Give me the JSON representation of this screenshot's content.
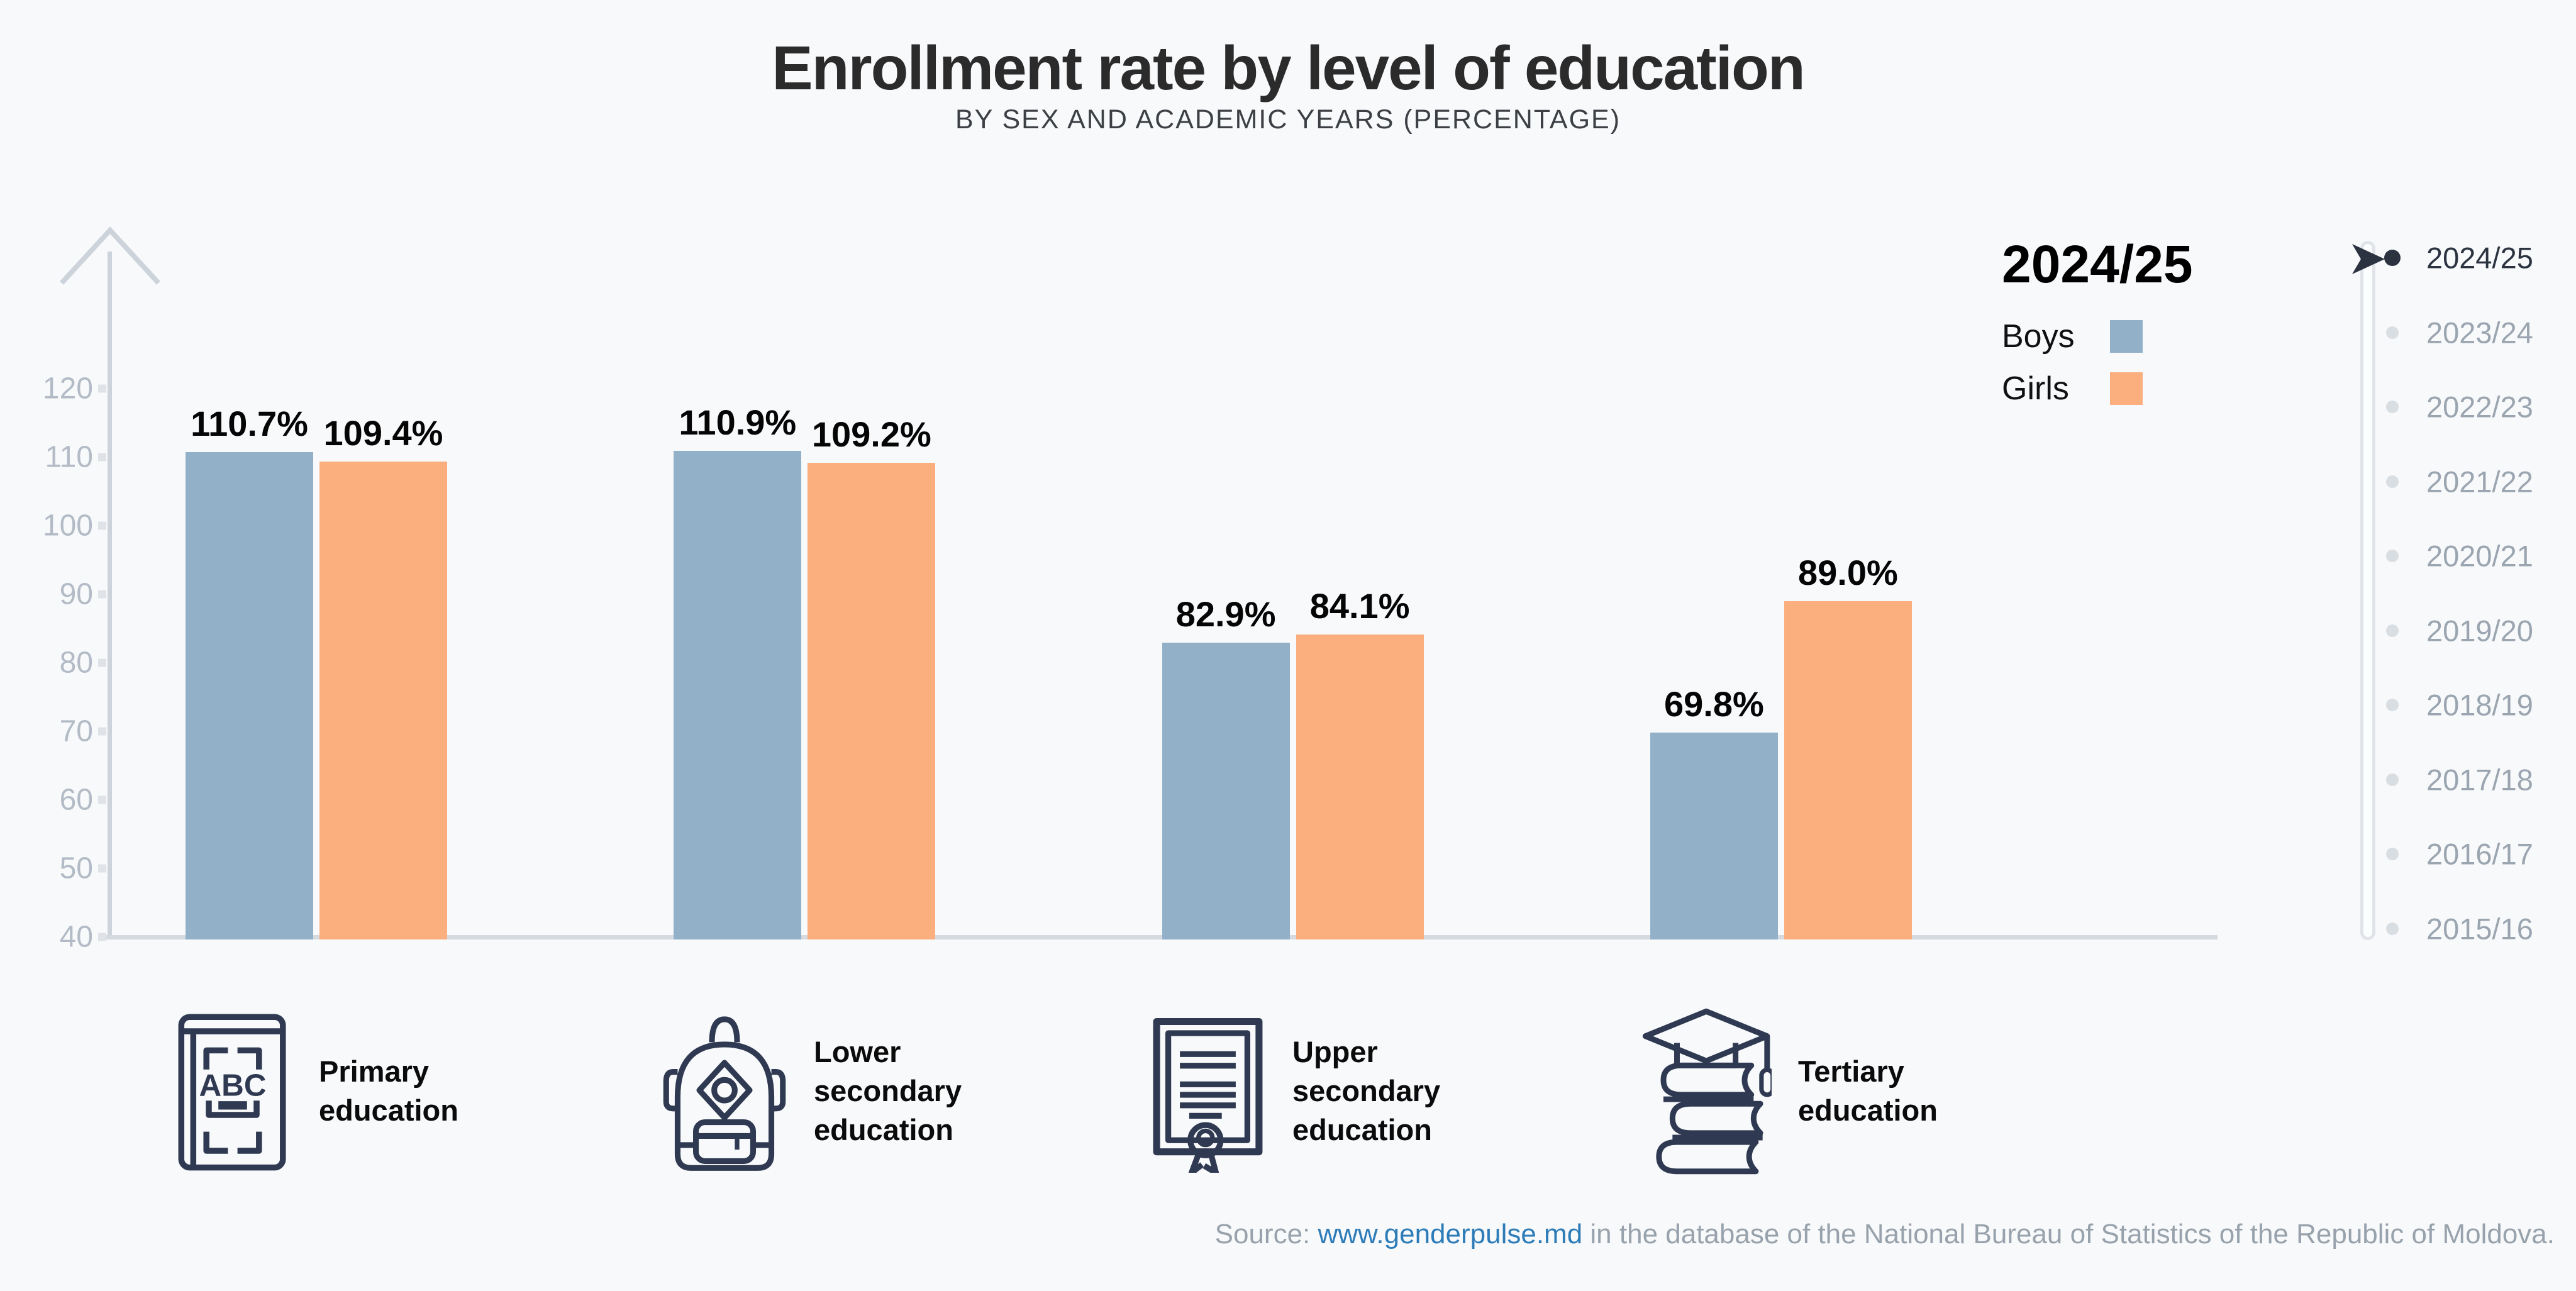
{
  "title": "Enrollment rate by level of education",
  "subtitle": "BY SEX AND ACADEMIC YEARS (PERCENTAGE)",
  "legend": {
    "year": "2024/25",
    "items": [
      {
        "label": "Boys",
        "color": "#93b0c9"
      },
      {
        "label": "Girls",
        "color": "#fbae7e"
      }
    ]
  },
  "chart_data": {
    "type": "bar",
    "title": "Enrollment rate by level of education",
    "subtitle": "BY SEX AND ACADEMIC YEARS (PERCENTAGE)",
    "selected_year": "2024/25",
    "categories": [
      "Primary education",
      "Lower secondary education",
      "Upper secondary education",
      "Tertiary education"
    ],
    "series": [
      {
        "name": "Boys",
        "color": "#93b0c9",
        "values": [
          110.7,
          110.9,
          82.9,
          69.8
        ]
      },
      {
        "name": "Girls",
        "color": "#fbae7e",
        "values": [
          109.4,
          109.2,
          84.1,
          89.0
        ]
      }
    ],
    "value_suffix": "%",
    "xlabel": "",
    "ylabel": "",
    "ylim": [
      40,
      130
    ],
    "yticks": [
      120,
      110,
      100,
      90,
      80,
      70,
      60,
      50,
      40
    ],
    "grid": false,
    "legend_position": "top-right"
  },
  "categories": [
    {
      "label": "Primary\neducation",
      "icon": "abc-book-icon"
    },
    {
      "label": "Lower\nsecondary\neducation",
      "icon": "backpack-icon"
    },
    {
      "label": "Upper\nsecondary\neducation",
      "icon": "diploma-icon"
    },
    {
      "label": "Tertiary\neducation",
      "icon": "graduation-books-icon"
    }
  ],
  "timeline": {
    "years": [
      "2024/25",
      "2023/24",
      "2022/23",
      "2021/22",
      "2020/21",
      "2019/20",
      "2018/19",
      "2017/18",
      "2016/17",
      "2015/16"
    ],
    "active_year": "2024/25"
  },
  "source": {
    "prefix": "Source: ",
    "link": "www.genderpulse.md",
    "suffix": " in the database of the National Bureau of Statistics of the Republic of Moldova."
  },
  "colors": {
    "background": "#f8f9fb",
    "boys_bar": "#93b0c9",
    "girls_bar": "#fbae7e",
    "axis": "#ccd3da",
    "tick_label": "#b3bcc6",
    "timeline_active": "#2b3340",
    "timeline_inactive": "#9aa5b0",
    "timeline_dot_inactive": "#d9dee3",
    "icon_stroke": "#2f3a52",
    "link": "#2d7cb8",
    "source_text": "#98a2ac"
  }
}
